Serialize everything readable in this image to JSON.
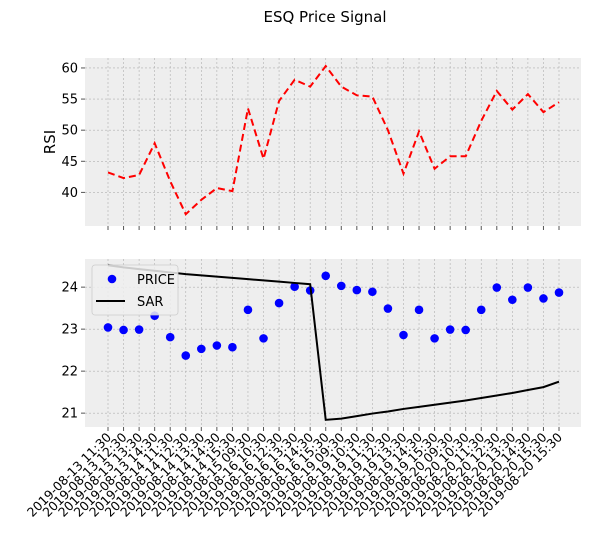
{
  "chart_data": {
    "title": "ESQ Price Signal",
    "x_labels": [
      "2019-08-13 11:30",
      "2019-08-13 12:30",
      "2019-08-13 13:30",
      "2019-08-13 14:30",
      "2019-08-14 11:30",
      "2019-08-14 12:30",
      "2019-08-14 13:30",
      "2019-08-14 14:30",
      "2019-08-14 15:30",
      "2019-08-15 09:30",
      "2019-08-16 10:30",
      "2019-08-16 12:30",
      "2019-08-16 13:30",
      "2019-08-16 14:30",
      "2019-08-16 15:30",
      "2019-08-19 09:30",
      "2019-08-19 10:30",
      "2019-08-19 11:30",
      "2019-08-19 12:30",
      "2019-08-19 13:30",
      "2019-08-19 14:30",
      "2019-08-19 15:30",
      "2019-08-20 09:30",
      "2019-08-20 10:30",
      "2019-08-20 11:30",
      "2019-08-20 12:30",
      "2019-08-20 13:30",
      "2019-08-20 14:30",
      "2019-08-20 15:30",
      "2019-08-20 15:30"
    ],
    "panels": [
      {
        "type": "line",
        "ylabel": "RSI",
        "ylim": [
          34.6,
          61.6
        ],
        "yticks": [
          40,
          45,
          50,
          55,
          60
        ],
        "grid": true,
        "series": [
          {
            "color": "#ff0000",
            "style": "dashed",
            "values": [
              43.2,
              42.3,
              42.8,
              47.9,
              41.8,
              36.5,
              38.8,
              40.7,
              40.2,
              53.5,
              45.4,
              54.7,
              58.1,
              57.0,
              60.3,
              57.0,
              55.6,
              55.4,
              50.0,
              43.0,
              49.8,
              43.8,
              45.8,
              45.8,
              51.5,
              56.3,
              53.3,
              55.8,
              52.9,
              54.5
            ]
          }
        ]
      },
      {
        "type": "line+scatter",
        "ylim": [
          20.67,
          24.67
        ],
        "yticks": [
          21,
          22,
          23,
          24
        ],
        "grid": true,
        "legend_position": "top-left",
        "series": [
          {
            "name": "PRICE",
            "type": "scatter",
            "color": "#0000ff",
            "values": [
              23.04,
              22.98,
              22.99,
              23.32,
              22.81,
              22.37,
              22.53,
              22.61,
              22.57,
              23.46,
              22.78,
              23.62,
              24.01,
              23.92,
              24.27,
              24.03,
              23.93,
              23.89,
              23.49,
              22.86,
              23.46,
              22.78,
              22.99,
              22.98,
              23.46,
              23.99,
              23.7,
              23.99,
              23.73,
              23.87
            ]
          },
          {
            "name": "SAR",
            "type": "line",
            "color": "#000000",
            "values": [
              24.52,
              24.47,
              24.43,
              24.39,
              24.35,
              24.31,
              24.28,
              24.25,
              24.22,
              24.19,
              24.16,
              24.13,
              24.1,
              24.07,
              20.84,
              20.87,
              20.93,
              20.99,
              21.04,
              21.1,
              21.15,
              21.2,
              21.25,
              21.3,
              21.36,
              21.42,
              21.48,
              21.55,
              21.62,
              21.75
            ]
          }
        ]
      }
    ]
  }
}
